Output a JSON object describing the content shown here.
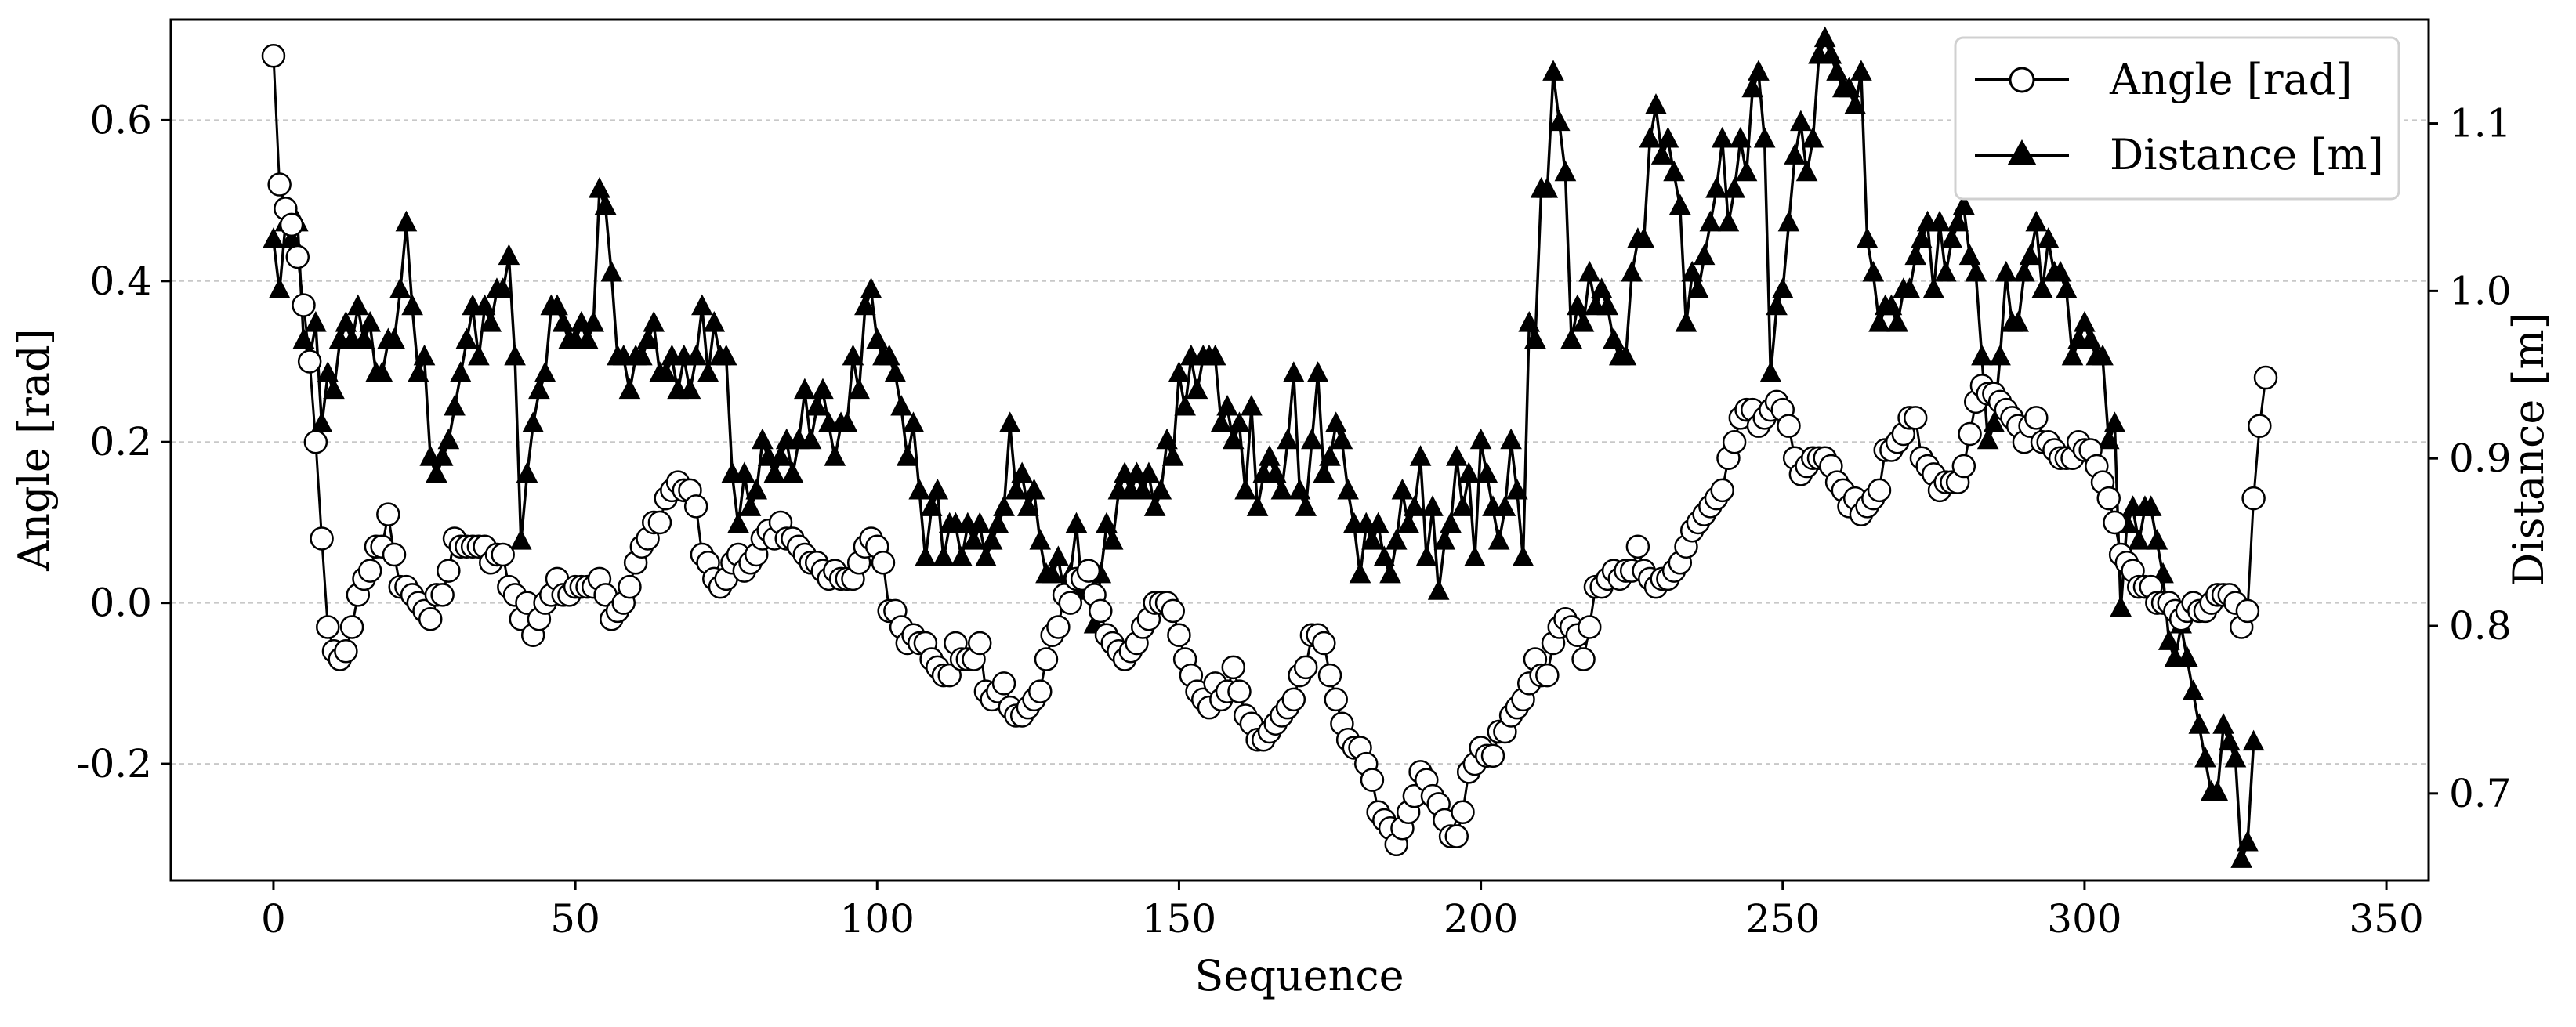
{
  "chart_data": {
    "type": "line",
    "title": "",
    "xlabel": "Sequence",
    "ylabel": "Angle [rad]",
    "y2label": "Distance [m]",
    "xlim": [
      -17,
      357
    ],
    "ylim": [
      -0.345,
      0.725
    ],
    "y2lim": [
      0.648,
      1.162
    ],
    "xticks": [
      0,
      50,
      100,
      150,
      200,
      250,
      300,
      350
    ],
    "yticks": [
      -0.2,
      0.0,
      0.2,
      0.4,
      0.6
    ],
    "ytick_labels": [
      "-0.2",
      "0.0",
      "0.2",
      "0.4",
      "0.6"
    ],
    "y2ticks": [
      0.7,
      0.8,
      0.9,
      1.0,
      1.1
    ],
    "y2tick_labels": [
      "0.7",
      "0.8",
      "0.9",
      "1.0",
      "1.1"
    ],
    "grid": "horizontal dashed",
    "legend_position": "top-right",
    "series": [
      {
        "name": "Angle [rad]",
        "axis": "left",
        "marker": "open-circle",
        "color": "#000000",
        "x_start": 0,
        "values": [
          0.68,
          0.52,
          0.49,
          0.47,
          0.43,
          0.37,
          0.3,
          0.2,
          0.08,
          -0.03,
          -0.06,
          -0.07,
          -0.06,
          -0.03,
          0.01,
          0.03,
          0.04,
          0.07,
          0.07,
          0.11,
          0.06,
          0.02,
          0.02,
          0.01,
          0.0,
          -0.01,
          -0.02,
          0.01,
          0.01,
          0.04,
          0.08,
          0.07,
          0.07,
          0.07,
          0.07,
          0.07,
          0.05,
          0.06,
          0.06,
          0.02,
          0.01,
          -0.02,
          0.0,
          -0.04,
          -0.02,
          0.0,
          0.01,
          0.03,
          0.01,
          0.01,
          0.02,
          0.02,
          0.02,
          0.02,
          0.03,
          0.01,
          -0.02,
          -0.01,
          0.0,
          0.02,
          0.05,
          0.07,
          0.08,
          0.1,
          0.1,
          0.13,
          0.14,
          0.15,
          0.14,
          0.14,
          0.12,
          0.06,
          0.05,
          0.03,
          0.02,
          0.03,
          0.05,
          0.06,
          0.04,
          0.05,
          0.06,
          0.08,
          0.09,
          0.08,
          0.1,
          0.08,
          0.08,
          0.07,
          0.06,
          0.05,
          0.05,
          0.04,
          0.03,
          0.04,
          0.03,
          0.03,
          0.03,
          0.05,
          0.07,
          0.08,
          0.07,
          0.05,
          -0.01,
          -0.01,
          -0.03,
          -0.05,
          -0.04,
          -0.05,
          -0.05,
          -0.07,
          -0.08,
          -0.09,
          -0.09,
          -0.05,
          -0.07,
          -0.07,
          -0.07,
          -0.05,
          -0.11,
          -0.12,
          -0.11,
          -0.1,
          -0.13,
          -0.14,
          -0.14,
          -0.13,
          -0.12,
          -0.11,
          -0.07,
          -0.04,
          -0.03,
          0.01,
          0.0,
          0.03,
          0.03,
          0.04,
          0.01,
          -0.01,
          -0.04,
          -0.05,
          -0.06,
          -0.07,
          -0.06,
          -0.05,
          -0.03,
          -0.02,
          0.0,
          0.0,
          0.0,
          -0.01,
          -0.04,
          -0.07,
          -0.09,
          -0.11,
          -0.12,
          -0.13,
          -0.1,
          -0.12,
          -0.11,
          -0.08,
          -0.11,
          -0.14,
          -0.15,
          -0.17,
          -0.17,
          -0.16,
          -0.15,
          -0.14,
          -0.13,
          -0.12,
          -0.09,
          -0.08,
          -0.04,
          -0.04,
          -0.05,
          -0.09,
          -0.12,
          -0.15,
          -0.17,
          -0.18,
          -0.18,
          -0.2,
          -0.22,
          -0.26,
          -0.27,
          -0.28,
          -0.3,
          -0.28,
          -0.26,
          -0.24,
          -0.21,
          -0.22,
          -0.24,
          -0.25,
          -0.27,
          -0.29,
          -0.29,
          -0.26,
          -0.21,
          -0.2,
          -0.18,
          -0.19,
          -0.19,
          -0.16,
          -0.16,
          -0.14,
          -0.13,
          -0.12,
          -0.1,
          -0.07,
          -0.09,
          -0.09,
          -0.05,
          -0.03,
          -0.02,
          -0.03,
          -0.04,
          -0.07,
          -0.03,
          0.02,
          0.02,
          0.03,
          0.04,
          0.03,
          0.04,
          0.04,
          0.07,
          0.04,
          0.03,
          0.02,
          0.03,
          0.03,
          0.04,
          0.05,
          0.07,
          0.09,
          0.1,
          0.11,
          0.12,
          0.13,
          0.14,
          0.18,
          0.2,
          0.23,
          0.24,
          0.24,
          0.22,
          0.23,
          0.24,
          0.25,
          0.24,
          0.22,
          0.18,
          0.16,
          0.17,
          0.18,
          0.18,
          0.18,
          0.17,
          0.15,
          0.14,
          0.12,
          0.13,
          0.11,
          0.12,
          0.13,
          0.14,
          0.19,
          0.19,
          0.2,
          0.21,
          0.23,
          0.23,
          0.18,
          0.17,
          0.16,
          0.14,
          0.15,
          0.15,
          0.15,
          0.17,
          0.21,
          0.25,
          0.27,
          0.26,
          0.26,
          0.25,
          0.24,
          0.23,
          0.22,
          0.2,
          0.22,
          0.23,
          0.2,
          0.2,
          0.19,
          0.18,
          0.18,
          0.18,
          0.2,
          0.19,
          0.19,
          0.17,
          0.15,
          0.13,
          0.1,
          0.06,
          0.05,
          0.04,
          0.02,
          0.02,
          0.02,
          0.0,
          0.0,
          0.0,
          -0.01,
          -0.02,
          -0.01,
          0.0,
          -0.01,
          -0.01,
          0.0,
          0.01,
          0.01,
          0.01,
          0.0,
          -0.03,
          -0.01,
          0.13,
          0.22,
          0.28
        ]
      },
      {
        "name": "Distance [m]",
        "axis": "right",
        "marker": "filled-triangle",
        "color": "#000000",
        "x_start": 0,
        "values": [
          1.03,
          1.0,
          1.04,
          1.03,
          1.04,
          0.97,
          0.96,
          0.98,
          0.92,
          0.95,
          0.94,
          0.97,
          0.98,
          0.97,
          0.99,
          0.97,
          0.98,
          0.95,
          0.95,
          0.97,
          0.97,
          1.0,
          1.04,
          0.99,
          0.95,
          0.96,
          0.9,
          0.89,
          0.9,
          0.91,
          0.93,
          0.95,
          0.97,
          0.99,
          0.96,
          0.99,
          0.98,
          1.0,
          1.0,
          1.02,
          0.96,
          0.85,
          0.89,
          0.92,
          0.94,
          0.95,
          0.99,
          0.99,
          0.98,
          0.97,
          0.97,
          0.98,
          0.97,
          0.98,
          1.06,
          1.05,
          1.01,
          0.96,
          0.96,
          0.94,
          0.96,
          0.96,
          0.97,
          0.98,
          0.95,
          0.95,
          0.96,
          0.94,
          0.96,
          0.94,
          0.96,
          0.99,
          0.95,
          0.98,
          0.96,
          0.96,
          0.89,
          0.86,
          0.89,
          0.87,
          0.88,
          0.91,
          0.9,
          0.89,
          0.9,
          0.91,
          0.89,
          0.91,
          0.94,
          0.91,
          0.93,
          0.94,
          0.92,
          0.9,
          0.92,
          0.92,
          0.96,
          0.94,
          0.99,
          1.0,
          0.97,
          0.96,
          0.96,
          0.95,
          0.93,
          0.9,
          0.92,
          0.88,
          0.84,
          0.87,
          0.88,
          0.84,
          0.86,
          0.86,
          0.84,
          0.86,
          0.85,
          0.86,
          0.84,
          0.85,
          0.86,
          0.87,
          0.92,
          0.88,
          0.89,
          0.87,
          0.88,
          0.85,
          0.83,
          0.83,
          0.84,
          0.82,
          0.83,
          0.86,
          0.82,
          0.83,
          0.8,
          0.83,
          0.86,
          0.85,
          0.88,
          0.89,
          0.88,
          0.89,
          0.88,
          0.89,
          0.87,
          0.88,
          0.91,
          0.9,
          0.95,
          0.93,
          0.96,
          0.94,
          0.96,
          0.96,
          0.96,
          0.92,
          0.93,
          0.91,
          0.92,
          0.88,
          0.93,
          0.87,
          0.89,
          0.9,
          0.89,
          0.88,
          0.91,
          0.95,
          0.88,
          0.87,
          0.91,
          0.95,
          0.89,
          0.9,
          0.92,
          0.91,
          0.88,
          0.86,
          0.83,
          0.86,
          0.85,
          0.86,
          0.84,
          0.83,
          0.85,
          0.88,
          0.86,
          0.87,
          0.9,
          0.84,
          0.87,
          0.82,
          0.85,
          0.86,
          0.9,
          0.87,
          0.89,
          0.84,
          0.91,
          0.89,
          0.87,
          0.85,
          0.87,
          0.91,
          0.88,
          0.84,
          0.98,
          0.97,
          1.06,
          1.06,
          1.13,
          1.1,
          1.07,
          0.97,
          0.99,
          0.98,
          1.01,
          0.99,
          1.0,
          0.99,
          0.97,
          0.96,
          0.96,
          1.01,
          1.03,
          1.03,
          1.09,
          1.11,
          1.08,
          1.09,
          1.07,
          1.05,
          0.98,
          1.01,
          1.0,
          1.02,
          1.04,
          1.06,
          1.09,
          1.04,
          1.06,
          1.09,
          1.07,
          1.12,
          1.13,
          1.09,
          0.95,
          0.99,
          1.0,
          1.04,
          1.08,
          1.1,
          1.07,
          1.09,
          1.14,
          1.15,
          1.14,
          1.13,
          1.12,
          1.12,
          1.11,
          1.13,
          1.03,
          1.01,
          0.98,
          0.99,
          0.99,
          0.98,
          1.0,
          1.0,
          1.02,
          1.03,
          1.04,
          1.0,
          1.04,
          1.01,
          1.03,
          1.04,
          1.05,
          1.02,
          1.01,
          0.96,
          0.91,
          0.92,
          0.96,
          1.01,
          0.98,
          0.98,
          1.01,
          1.02,
          1.04,
          1.0,
          1.03,
          1.01,
          1.01,
          1.0,
          0.96,
          0.97,
          0.98,
          0.97,
          0.96,
          0.96,
          0.91,
          0.92,
          0.81,
          0.86,
          0.87,
          0.85,
          0.87,
          0.87,
          0.85,
          0.83,
          0.79,
          0.78,
          0.8,
          0.78,
          0.76,
          0.74,
          0.72,
          0.7,
          0.7,
          0.74,
          0.73,
          0.72,
          0.66,
          0.67,
          0.73
        ]
      }
    ]
  }
}
